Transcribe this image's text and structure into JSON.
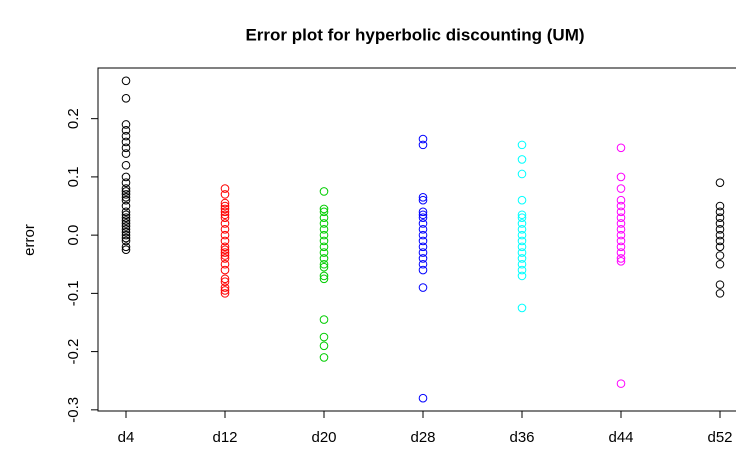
{
  "chart_data": {
    "type": "strip",
    "title": "Error plot for hyperbolic discounting (UM)",
    "y_label": "error",
    "categories": [
      "d4",
      "d12",
      "d20",
      "d28",
      "d36",
      "d44",
      "d52"
    ],
    "colors": [
      "#000000",
      "#ff0000",
      "#00cd00",
      "#0000ff",
      "#00ffff",
      "#ff00ff",
      "#000000"
    ],
    "values": [
      [
        0.265,
        0.235,
        0.19,
        0.18,
        0.17,
        0.16,
        0.15,
        0.14,
        0.12,
        0.1,
        0.09,
        0.08,
        0.075,
        0.07,
        0.065,
        0.06,
        0.05,
        0.04,
        0.035,
        0.03,
        0.025,
        0.02,
        0.015,
        0.01,
        0.005,
        0,
        -0.005,
        -0.01,
        -0.02,
        -0.025
      ],
      [
        0.08,
        0.07,
        0.055,
        0.05,
        0.045,
        0.04,
        0.035,
        0.03,
        0.02,
        0.01,
        0,
        -0.01,
        -0.02,
        -0.025,
        -0.03,
        -0.035,
        -0.04,
        -0.05,
        -0.06,
        -0.075,
        -0.08,
        -0.09,
        -0.095,
        -0.1
      ],
      [
        0.075,
        0.045,
        0.04,
        0.03,
        0.02,
        0.01,
        0,
        -0.01,
        -0.02,
        -0.03,
        -0.04,
        -0.05,
        -0.055,
        -0.07,
        -0.075,
        -0.145,
        -0.175,
        -0.19,
        -0.21
      ],
      [
        0.165,
        0.155,
        0.065,
        0.06,
        0.04,
        0.035,
        0.03,
        0.02,
        0.01,
        0,
        -0.01,
        -0.02,
        -0.03,
        -0.04,
        -0.05,
        -0.06,
        -0.09,
        -0.28
      ],
      [
        0.155,
        0.13,
        0.105,
        0.06,
        0.035,
        0.03,
        0.02,
        0.01,
        0,
        -0.01,
        -0.02,
        -0.03,
        -0.04,
        -0.05,
        -0.06,
        -0.07,
        -0.125
      ],
      [
        0.15,
        0.1,
        0.08,
        0.06,
        0.05,
        0.04,
        0.03,
        0.02,
        0.01,
        0,
        -0.01,
        -0.02,
        -0.03,
        -0.04,
        -0.045,
        -0.255
      ],
      [
        0.09,
        0.05,
        0.04,
        0.03,
        0.02,
        0.01,
        0,
        -0.01,
        -0.02,
        -0.035,
        -0.05,
        -0.085,
        -0.1
      ]
    ],
    "ylim": [
      -0.302,
      0.287
    ],
    "yticks": [
      -0.3,
      -0.2,
      -0.1,
      {
        "value": 0,
        "label": "0.0"
      },
      0.1,
      0.2
    ],
    "grid": false
  }
}
